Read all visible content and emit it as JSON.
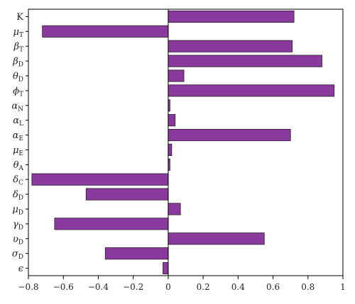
{
  "chart_data": {
    "type": "bar",
    "orientation": "horizontal",
    "categories": [
      {
        "sym": "K",
        "sub": ""
      },
      {
        "sym": "μ",
        "sub": "T"
      },
      {
        "sym": "β",
        "sub": "T"
      },
      {
        "sym": "β",
        "sub": "D"
      },
      {
        "sym": "θ",
        "sub": "D"
      },
      {
        "sym": "ϕ",
        "sub": "T"
      },
      {
        "sym": "α",
        "sub": "N"
      },
      {
        "sym": "α",
        "sub": "L"
      },
      {
        "sym": "α",
        "sub": "E"
      },
      {
        "sym": "μ",
        "sub": "E"
      },
      {
        "sym": "θ",
        "sub": "A"
      },
      {
        "sym": "δ",
        "sub": "C"
      },
      {
        "sym": "δ",
        "sub": "D"
      },
      {
        "sym": "μ",
        "sub": "D"
      },
      {
        "sym": "γ",
        "sub": "D"
      },
      {
        "sym": "υ",
        "sub": "D"
      },
      {
        "sym": "σ",
        "sub": "D"
      },
      {
        "sym": "ϵ",
        "sub": ""
      }
    ],
    "values": [
      0.72,
      -0.72,
      0.71,
      0.88,
      0.09,
      0.95,
      0.01,
      0.04,
      0.7,
      0.02,
      0.01,
      -0.78,
      -0.47,
      0.07,
      -0.65,
      0.55,
      -0.36,
      -0.03
    ],
    "xlim": [
      -0.8,
      1.0
    ],
    "xticks": [
      -0.8,
      -0.6,
      -0.4,
      -0.2,
      0,
      0.2,
      0.4,
      0.6,
      0.8,
      1
    ],
    "xtick_labels": [
      "−0.8",
      "−0.6",
      "−0.4",
      "−0.2",
      "0",
      "0.2",
      "0.4",
      "0.6",
      "0.8",
      "1"
    ],
    "bar_color": "#8a3a9c",
    "bar_edge_color": "#2a1a2e",
    "grid": false,
    "zero_line": true,
    "title": "",
    "xlabel": "",
    "ylabel": ""
  }
}
